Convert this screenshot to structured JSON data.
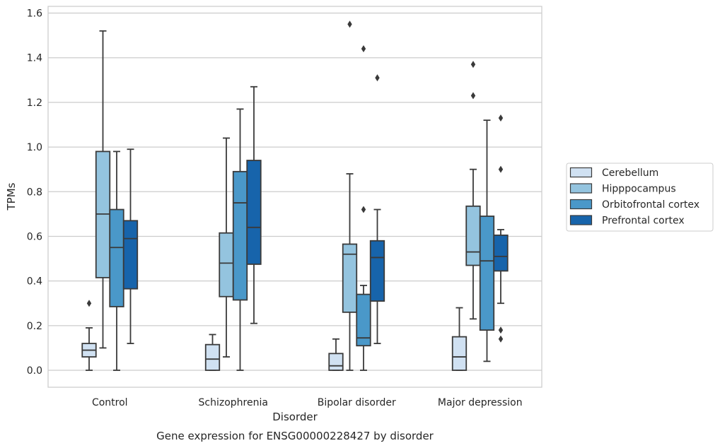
{
  "chart_data": {
    "type": "box",
    "title": "",
    "caption": "Gene expression for ENSG00000228427 by disorder",
    "xlabel": "Disorder",
    "ylabel": "TPMs",
    "ylim": [
      -0.075,
      1.63
    ],
    "yticks": [
      "0.0",
      "0.2",
      "0.4",
      "0.6",
      "0.8",
      "1.0",
      "1.2",
      "1.4",
      "1.6"
    ],
    "grid": true,
    "legend_position": "right",
    "categories": [
      "Control",
      "Schizophrenia",
      "Bipolar disorder",
      "Major depression"
    ],
    "series": [
      {
        "name": "Cerebellum",
        "color": "#d0e1f2",
        "boxes": [
          {
            "whisker_low": 0.0,
            "q1": 0.06,
            "median": 0.09,
            "q3": 0.12,
            "whisker_high": 0.19,
            "outliers": [
              0.3
            ]
          },
          {
            "whisker_low": 0.0,
            "q1": 0.0,
            "median": 0.05,
            "q3": 0.115,
            "whisker_high": 0.16,
            "outliers": []
          },
          {
            "whisker_low": 0.0,
            "q1": 0.0,
            "median": 0.02,
            "q3": 0.075,
            "whisker_high": 0.14,
            "outliers": []
          },
          {
            "whisker_low": 0.0,
            "q1": 0.0,
            "median": 0.06,
            "q3": 0.15,
            "whisker_high": 0.28,
            "outliers": []
          }
        ]
      },
      {
        "name": "Hipppocampus",
        "color": "#94c4df",
        "boxes": [
          {
            "whisker_low": 0.1,
            "q1": 0.415,
            "median": 0.7,
            "q3": 0.98,
            "whisker_high": 1.52,
            "outliers": []
          },
          {
            "whisker_low": 0.06,
            "q1": 0.33,
            "median": 0.48,
            "q3": 0.615,
            "whisker_high": 1.04,
            "outliers": []
          },
          {
            "whisker_low": 0.0,
            "q1": 0.26,
            "median": 0.52,
            "q3": 0.565,
            "whisker_high": 0.88,
            "outliers": [
              1.55
            ]
          },
          {
            "whisker_low": 0.23,
            "q1": 0.47,
            "median": 0.53,
            "q3": 0.735,
            "whisker_high": 0.9,
            "outliers": [
              1.37,
              1.23
            ]
          }
        ]
      },
      {
        "name": "Orbitofrontal cortex",
        "color": "#4a98c9",
        "boxes": [
          {
            "whisker_low": 0.0,
            "q1": 0.285,
            "median": 0.55,
            "q3": 0.72,
            "whisker_high": 0.98,
            "outliers": []
          },
          {
            "whisker_low": 0.0,
            "q1": 0.315,
            "median": 0.75,
            "q3": 0.89,
            "whisker_high": 1.17,
            "outliers": []
          },
          {
            "whisker_low": 0.0,
            "q1": 0.11,
            "median": 0.145,
            "q3": 0.34,
            "whisker_high": 0.38,
            "outliers": [
              0.72,
              1.44
            ]
          },
          {
            "whisker_low": 0.04,
            "q1": 0.18,
            "median": 0.49,
            "q3": 0.69,
            "whisker_high": 1.12,
            "outliers": []
          }
        ]
      },
      {
        "name": "Prefrontal cortex",
        "color": "#1764ab",
        "boxes": [
          {
            "whisker_low": 0.12,
            "q1": 0.365,
            "median": 0.59,
            "q3": 0.67,
            "whisker_high": 0.99,
            "outliers": []
          },
          {
            "whisker_low": 0.21,
            "q1": 0.475,
            "median": 0.64,
            "q3": 0.94,
            "whisker_high": 1.27,
            "outliers": []
          },
          {
            "whisker_low": 0.12,
            "q1": 0.31,
            "median": 0.505,
            "q3": 0.58,
            "whisker_high": 0.72,
            "outliers": [
              1.31
            ]
          },
          {
            "whisker_low": 0.3,
            "q1": 0.445,
            "median": 0.51,
            "q3": 0.605,
            "whisker_high": 0.63,
            "outliers": [
              1.13,
              0.9,
              0.18,
              0.14
            ]
          }
        ]
      }
    ]
  }
}
